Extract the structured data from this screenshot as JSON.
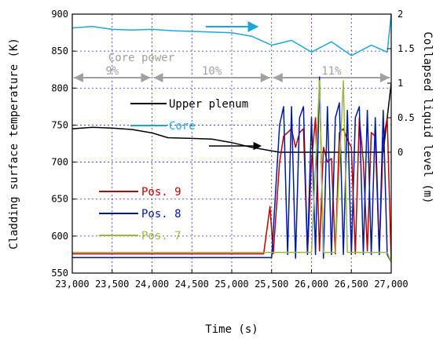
{
  "chart_data": {
    "type": "line",
    "xlabel": "Time (s)",
    "ylabel_left": "Cladding surface temperature (K)",
    "ylabel_right": "Collapsed liquid level (m)",
    "xlim": [
      23000,
      27000
    ],
    "ylim_left": [
      550,
      900
    ],
    "ylim_right": [
      -1.75,
      2
    ],
    "x_ticks": [
      "23,000",
      "23,500",
      "24,000",
      "24,500",
      "25,000",
      "25,500",
      "26,000",
      "26,500",
      "27,000"
    ],
    "x_tick_values": [
      23000,
      23500,
      24000,
      24500,
      25000,
      25500,
      26000,
      26500,
      27000
    ],
    "y_ticks_left": [
      550,
      600,
      650,
      700,
      750,
      800,
      850,
      900
    ],
    "y_ticks_right": [
      "0",
      "0.5",
      "1",
      "1.5",
      "2"
    ],
    "y_tick_values_right": [
      0,
      0.5,
      1,
      1.5,
      2
    ],
    "grid": true,
    "annotations": {
      "core_power_label": "Core power",
      "power_segments": [
        {
          "label": "9%",
          "from": 23000,
          "to": 24000
        },
        {
          "label": "10%",
          "from": 24000,
          "to": 25500
        },
        {
          "label": "11%",
          "from": 25500,
          "to": 27000
        }
      ]
    },
    "series": [
      {
        "name": "Upper plenum",
        "axis": "right",
        "color": "#000000",
        "x": [
          23000,
          23250,
          23500,
          23750,
          24000,
          24200,
          24500,
          24750,
          25000,
          25250,
          25500,
          25600,
          26000,
          26500,
          26900,
          27000
        ],
        "y": [
          0.34,
          0.36,
          0.35,
          0.33,
          0.28,
          0.21,
          0.2,
          0.19,
          0.14,
          0.07,
          0.02,
          0.0,
          0.0,
          0.0,
          0.0,
          1.0
        ]
      },
      {
        "name": "Core",
        "axis": "right",
        "color": "#1fa6d8",
        "x": [
          23000,
          23250,
          23500,
          23750,
          24000,
          24250,
          24500,
          24750,
          25000,
          25250,
          25500,
          25750,
          26000,
          26250,
          26500,
          26750,
          26950,
          27000
        ],
        "y": [
          1.8,
          1.82,
          1.78,
          1.77,
          1.78,
          1.76,
          1.75,
          1.74,
          1.73,
          1.68,
          1.55,
          1.62,
          1.45,
          1.6,
          1.4,
          1.55,
          1.45,
          2.0
        ]
      },
      {
        "name": "Pos. 9",
        "axis": "left",
        "color": "#c00000",
        "x": [
          23000,
          25400,
          25480,
          25520,
          25600,
          25650,
          25700,
          25750,
          25800,
          25850,
          25900,
          25950,
          26000,
          26050,
          26100,
          26150,
          26200,
          26250,
          26300,
          26350,
          26400,
          26450,
          26500,
          26550,
          26600,
          26650,
          26700,
          26750,
          26800,
          26850,
          26900,
          26950,
          27000
        ],
        "y": [
          576,
          576,
          640,
          576,
          700,
          735,
          740,
          745,
          720,
          740,
          745,
          576,
          700,
          760,
          580,
          720,
          700,
          705,
          576,
          740,
          745,
          730,
          720,
          576,
          760,
          700,
          580,
          740,
          735,
          576,
          730,
          760,
          565
        ]
      },
      {
        "name": "Pos. 8",
        "axis": "left",
        "color": "#0018a8",
        "x": [
          23000,
          25500,
          25600,
          25650,
          25700,
          25750,
          25800,
          25850,
          25900,
          25950,
          26000,
          26050,
          26100,
          26150,
          26200,
          26250,
          26300,
          26350,
          26400,
          26450,
          26500,
          26550,
          26600,
          26650,
          26700,
          26750,
          26800,
          26850,
          26900,
          26950,
          27000
        ],
        "y": [
          571,
          571,
          750,
          775,
          575,
          775,
          570,
          760,
          775,
          575,
          760,
          575,
          815,
          570,
          775,
          575,
          760,
          780,
          575,
          770,
          575,
          760,
          775,
          575,
          770,
          575,
          760,
          575,
          770,
          575,
          565
        ]
      },
      {
        "name": "Pos. 7",
        "axis": "left",
        "color": "#9ab83a",
        "x": [
          23000,
          25500,
          25600,
          25700,
          25800,
          25900,
          26000,
          26100,
          26150,
          26200,
          26300,
          26400,
          26450,
          26500,
          26600,
          26700,
          26800,
          26900,
          26950,
          27000
        ],
        "y": [
          578,
          578,
          578,
          578,
          578,
          578,
          578,
          810,
          578,
          578,
          578,
          810,
          578,
          578,
          578,
          578,
          578,
          578,
          578,
          565
        ]
      }
    ]
  }
}
